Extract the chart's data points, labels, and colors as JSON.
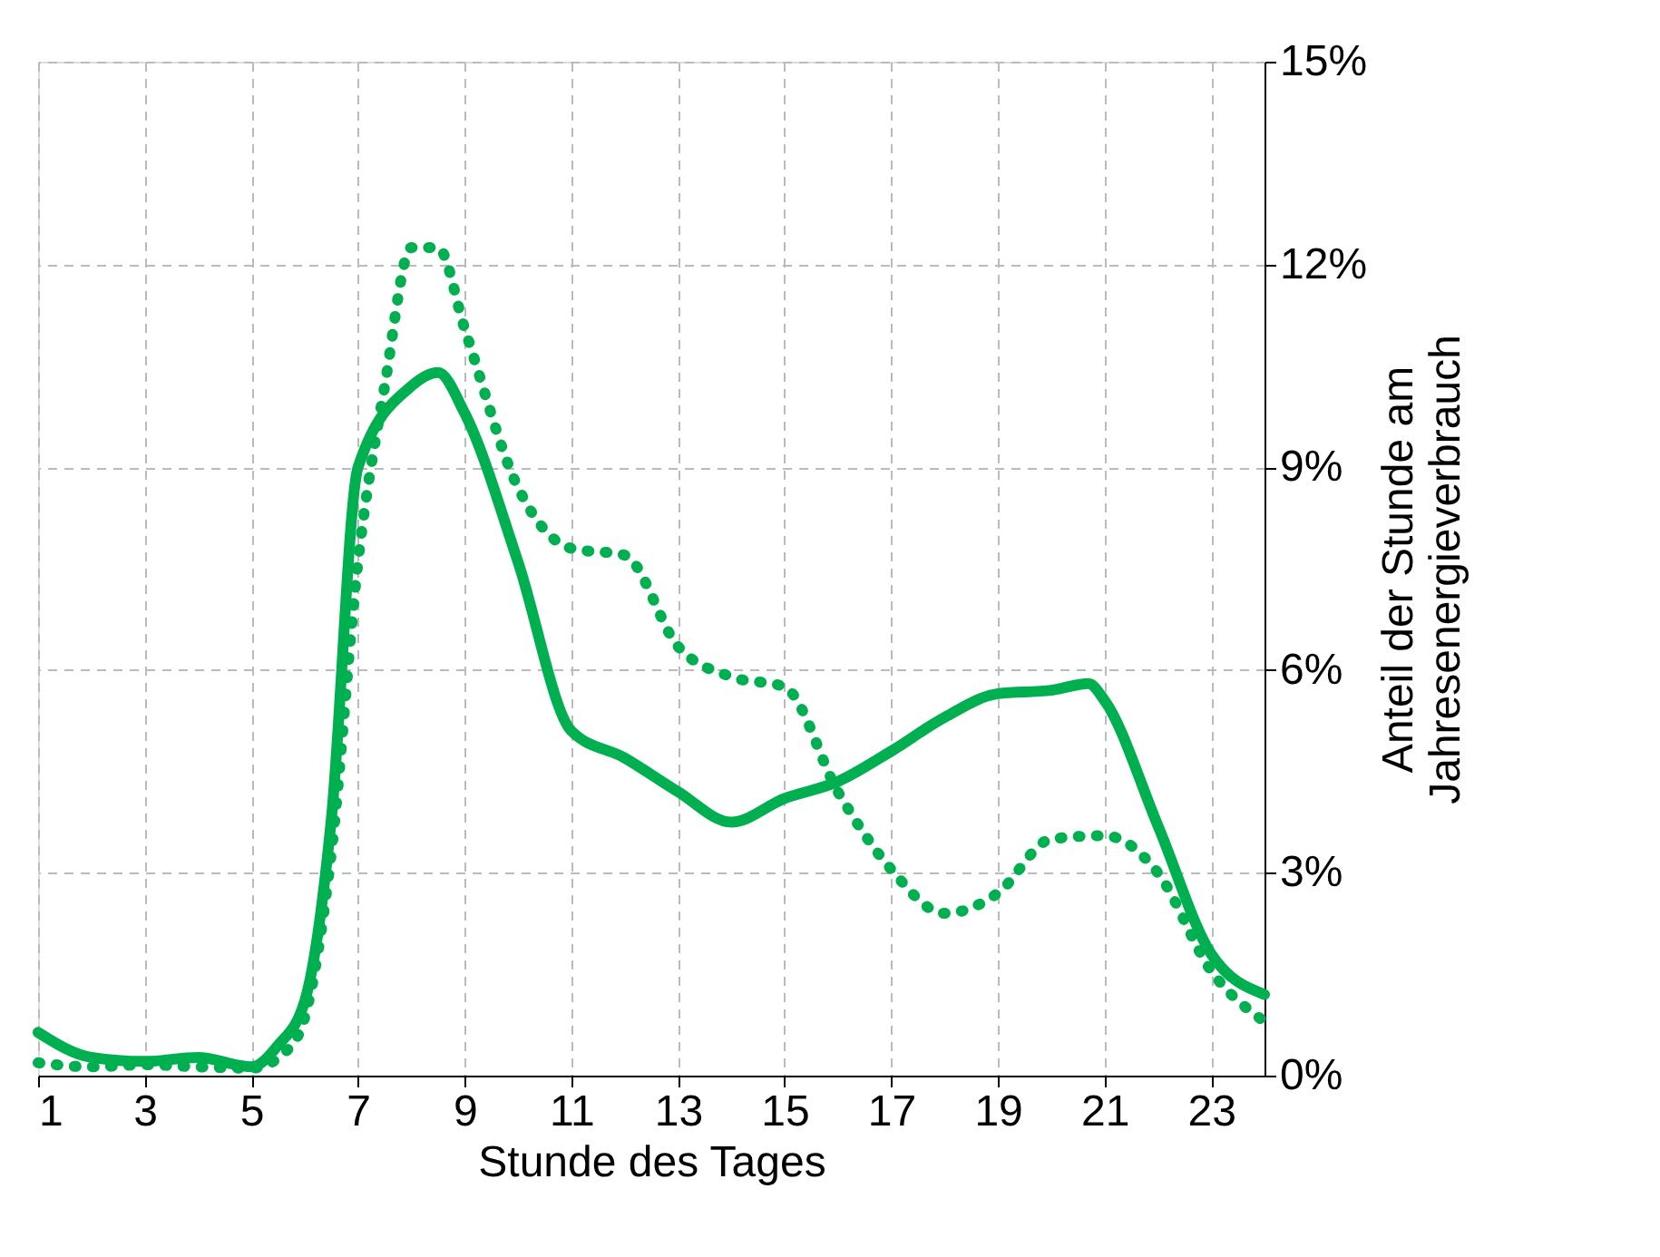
{
  "chart_data": {
    "type": "line",
    "xlabel": "Stunde des Tages",
    "ylabel": "Anteil der Stunde am\nJahresenergieverbrauch",
    "xlim": [
      1,
      24
    ],
    "xticks": [
      1,
      3,
      5,
      7,
      9,
      11,
      13,
      15,
      17,
      19,
      21,
      23
    ],
    "ylim": [
      0,
      15
    ],
    "yticks": [
      {
        "value": 0,
        "label": "0%"
      },
      {
        "value": 3,
        "label": "3%"
      },
      {
        "value": 6,
        "label": "6%"
      },
      {
        "value": 9,
        "label": "9%"
      },
      {
        "value": 12,
        "label": "12%"
      },
      {
        "value": 15,
        "label": "15%"
      }
    ],
    "grid": true,
    "series": [
      {
        "color": "#00b050",
        "line_style": "solid",
        "x": [
          1,
          2,
          3,
          4,
          5,
          5.5,
          6,
          6.5,
          7,
          8,
          8.5,
          9,
          10,
          11,
          12,
          13,
          14,
          15,
          16,
          17,
          18,
          19,
          20,
          20.7,
          21,
          22,
          23,
          24
        ],
        "values": [
          0.64,
          0.27,
          0.21,
          0.27,
          0.13,
          0.45,
          1.1,
          3.8,
          9.0,
          10.2,
          10.4,
          9.8,
          7.6,
          5.1,
          4.7,
          4.2,
          3.75,
          4.1,
          4.35,
          4.8,
          5.3,
          5.65,
          5.7,
          5.8,
          5.55,
          3.7,
          1.8,
          1.2
        ]
      },
      {
        "color": "#00b050",
        "line_style": "dotted",
        "x": [
          1,
          2,
          3,
          4,
          5,
          5.7,
          6,
          6.5,
          7,
          7.5,
          8,
          8.5,
          9,
          10,
          11,
          12,
          13,
          14,
          15,
          16,
          17,
          18,
          19,
          20,
          21,
          22,
          23,
          24
        ],
        "values": [
          0.19,
          0.13,
          0.16,
          0.13,
          0.11,
          0.4,
          0.86,
          3.3,
          7.6,
          10.2,
          12.25,
          12.25,
          11.05,
          8.7,
          7.8,
          7.7,
          6.35,
          5.9,
          5.75,
          4.2,
          3.05,
          2.4,
          2.7,
          3.5,
          3.55,
          3.0,
          1.55,
          0.8
        ]
      }
    ]
  }
}
